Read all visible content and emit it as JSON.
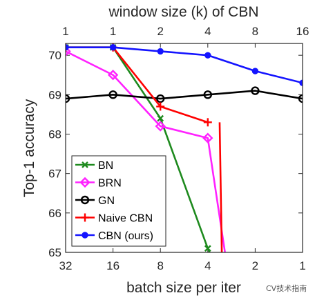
{
  "chart_data": {
    "type": "line",
    "xlabel": "batch size per iter",
    "x_top_label": "window size (k) of CBN",
    "ylabel": "Top-1 accuracy",
    "ylim": [
      65,
      70.3
    ],
    "yticks": [
      65,
      66,
      67,
      68,
      69,
      70
    ],
    "x_bottom_ticks": [
      "32",
      "16",
      "8",
      "4",
      "2",
      "1"
    ],
    "x_top_ticks": [
      "1",
      "1",
      "2",
      "4",
      "8",
      "16"
    ],
    "categories": [
      "32",
      "16",
      "8",
      "4",
      "2",
      "1"
    ],
    "grid": false,
    "legend_placement": "bottom-left",
    "series": [
      {
        "name": "BN",
        "color": "#1e8a1e",
        "marker": "x",
        "points": [
          [
            0,
            70.2
          ],
          [
            1,
            70.2
          ],
          [
            2,
            68.4
          ],
          [
            3,
            65.1
          ],
          [
            3.15,
            64.7
          ]
        ]
      },
      {
        "name": "BRN",
        "color": "#ff22ff",
        "marker": "diamond",
        "points": [
          [
            0,
            70.1
          ],
          [
            1,
            69.5
          ],
          [
            2,
            68.2
          ],
          [
            3,
            67.9
          ],
          [
            3.4,
            64.7
          ]
        ]
      },
      {
        "name": "GN",
        "color": "#000000",
        "marker": "circle",
        "points": [
          [
            0,
            68.9
          ],
          [
            1,
            69.0
          ],
          [
            2,
            68.9
          ],
          [
            3,
            69.0
          ],
          [
            4,
            69.1
          ],
          [
            5,
            68.9
          ]
        ]
      },
      {
        "name": "Naive CBN",
        "color": "#ff0000",
        "marker": "plus",
        "points": [
          [
            0,
            70.2
          ],
          [
            1,
            70.2
          ],
          [
            2,
            68.7
          ],
          [
            3,
            68.3
          ]
        ],
        "drop": [
          [
            3.25,
            68.3
          ],
          [
            3.3,
            64.7
          ]
        ]
      },
      {
        "name": "CBN (ours)",
        "color": "#1414ff",
        "marker": "filled-circle",
        "points": [
          [
            0,
            70.2
          ],
          [
            1,
            70.2
          ],
          [
            2,
            70.1
          ],
          [
            3,
            70.0
          ],
          [
            4,
            69.6
          ],
          [
            5,
            69.3
          ]
        ]
      }
    ]
  },
  "watermark": "CV技术指南"
}
